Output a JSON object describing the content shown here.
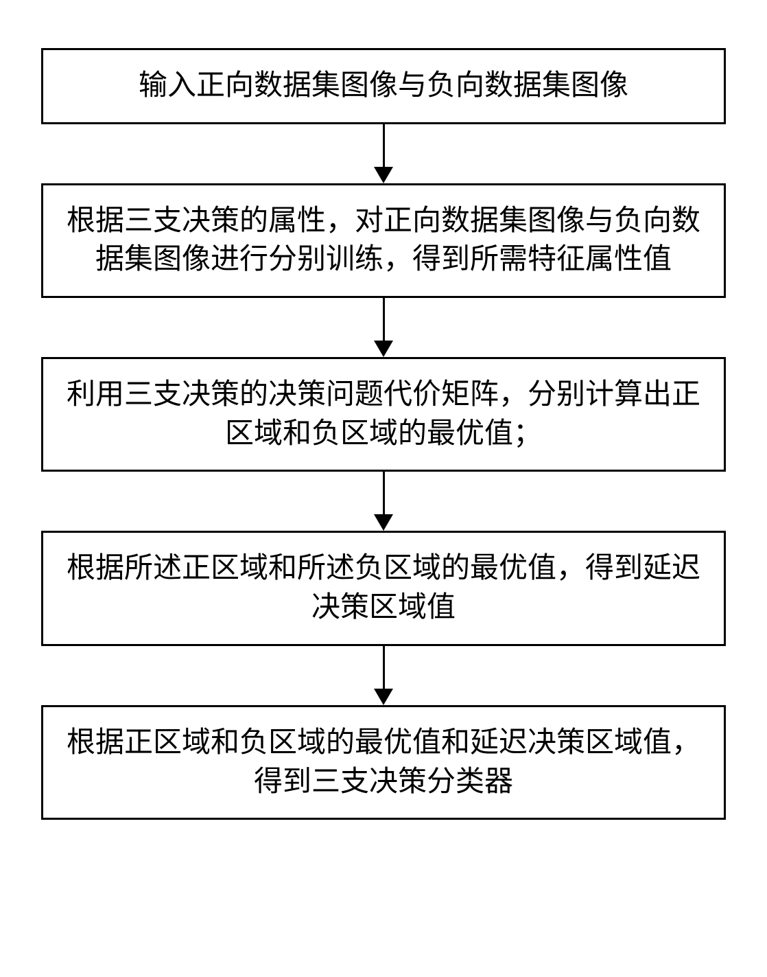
{
  "flowchart": {
    "type": "flowchart",
    "direction": "vertical",
    "node_border_color": "#000000",
    "node_border_width": 3,
    "node_background": "#ffffff",
    "arrow_color": "#000000",
    "arrow_line_width": 3,
    "font_family": "SimSun",
    "font_size": 42,
    "text_color": "#000000",
    "nodes": [
      {
        "id": "step1",
        "text": "输入正向数据集图像与负向数据集图像"
      },
      {
        "id": "step2",
        "text": "根据三支决策的属性，对正向数据集图像与负向数据集图像进行分别训练，得到所需特征属性值"
      },
      {
        "id": "step3",
        "text": "利用三支决策的决策问题代价矩阵，分别计算出正区域和负区域的最优值；"
      },
      {
        "id": "step4",
        "text": "根据所述正区域和所述负区域的最优值，得到延迟决策区域值"
      },
      {
        "id": "step5",
        "text": "根据正区域和负区域的最优值和延迟决策区域值，得到三支决策分类器"
      }
    ],
    "edges": [
      {
        "from": "step1",
        "to": "step2"
      },
      {
        "from": "step2",
        "to": "step3"
      },
      {
        "from": "step3",
        "to": "step4"
      },
      {
        "from": "step4",
        "to": "step5"
      }
    ]
  }
}
